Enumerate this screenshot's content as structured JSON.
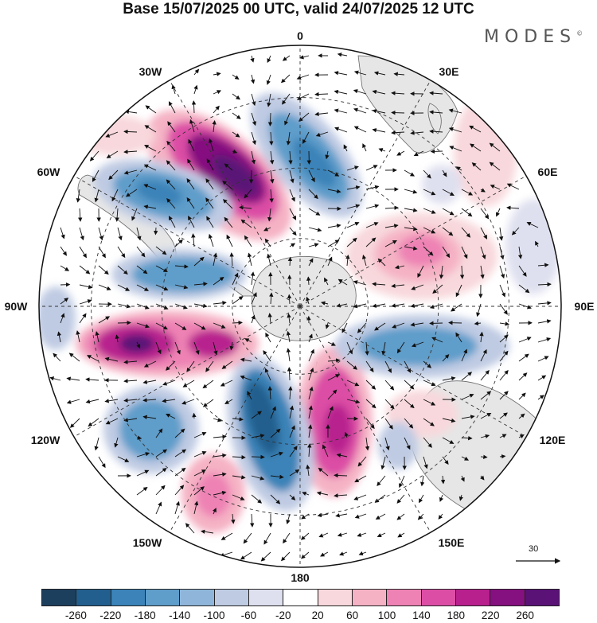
{
  "title": "Base 15/07/2025 00 UTC, valid 24/07/2025 12 UTC",
  "brand": "MODES",
  "brand_mark": "©",
  "longitude_labels": {
    "lon_0": "0",
    "lon_30e": "30E",
    "lon_60e": "60E",
    "lon_90e": "90E",
    "lon_120e": "120E",
    "lon_150e": "150E",
    "lon_180": "180",
    "lon_150w": "150W",
    "lon_120w": "120W",
    "lon_90w": "90W",
    "lon_60w": "60W",
    "lon_30w": "30W"
  },
  "vector_scale": "30",
  "colorbar": {
    "ticks": [
      "-260",
      "-220",
      "-180",
      "-140",
      "-100",
      "-60",
      "-20",
      "20",
      "60",
      "100",
      "140",
      "180",
      "220",
      "260"
    ],
    "colors": [
      "#1d3f5e",
      "#225f8e",
      "#3b83b8",
      "#5f9dca",
      "#8fb6da",
      "#bfcbe3",
      "#dfe0ef",
      "#ffffff",
      "#f8d8dc",
      "#f5b2c5",
      "#ee82b4",
      "#dc4ea5",
      "#b8208e",
      "#85107f",
      "#5a1277"
    ]
  },
  "colors": {
    "land": "#e6e6e6",
    "grid": "#333333",
    "background": "#ffffff"
  }
}
